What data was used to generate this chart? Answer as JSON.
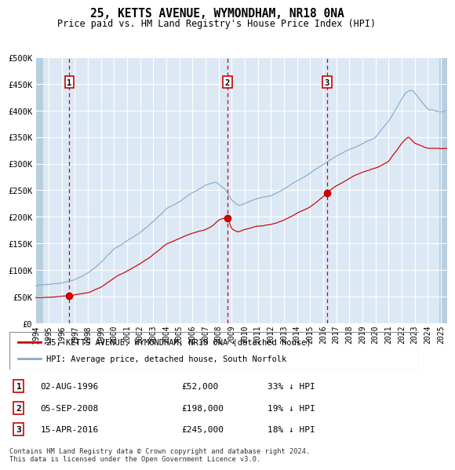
{
  "title": "25, KETTS AVENUE, WYMONDHAM, NR18 0NA",
  "subtitle": "Price paid vs. HM Land Registry's House Price Index (HPI)",
  "background_color": "#ffffff",
  "plot_bg_color": "#dce9f5",
  "hatch_color": "#b8cfe0",
  "grid_color": "#ffffff",
  "red_line_color": "#cc0000",
  "blue_line_color": "#88aacc",
  "sale_marker_color": "#cc0000",
  "vline_color": "#cc0000",
  "ylabel_values": [
    "£0",
    "£50K",
    "£100K",
    "£150K",
    "£200K",
    "£250K",
    "£300K",
    "£350K",
    "£400K",
    "£450K",
    "£500K"
  ],
  "ytick_values": [
    0,
    50000,
    100000,
    150000,
    200000,
    250000,
    300000,
    350000,
    400000,
    450000,
    500000
  ],
  "ylim": [
    0,
    500000
  ],
  "sale_points": [
    {
      "date_num": 1996.58,
      "price": 52000,
      "label": "1",
      "date_str": "02-AUG-1996",
      "price_str": "£52,000",
      "note": "33% ↓ HPI"
    },
    {
      "date_num": 2008.67,
      "price": 198000,
      "label": "2",
      "date_str": "05-SEP-2008",
      "price_str": "£198,000",
      "note": "19% ↓ HPI"
    },
    {
      "date_num": 2016.29,
      "price": 245000,
      "label": "3",
      "date_str": "15-APR-2016",
      "price_str": "£245,000",
      "note": "18% ↓ HPI"
    }
  ],
  "legend_entries": [
    {
      "label": "25, KETTS AVENUE, WYMONDHAM, NR18 0NA (detached house)",
      "color": "#cc0000"
    },
    {
      "label": "HPI: Average price, detached house, South Norfolk",
      "color": "#88aacc"
    }
  ],
  "footer": "Contains HM Land Registry data © Crown copyright and database right 2024.\nThis data is licensed under the Open Government Licence v3.0.",
  "xlim_start": 1994.0,
  "xlim_end": 2025.5,
  "xtick_years": [
    1994,
    1995,
    1996,
    1997,
    1998,
    1999,
    2000,
    2001,
    2002,
    2003,
    2004,
    2005,
    2006,
    2007,
    2008,
    2009,
    2010,
    2011,
    2012,
    2013,
    2014,
    2015,
    2016,
    2017,
    2018,
    2019,
    2020,
    2021,
    2022,
    2023,
    2024,
    2025
  ],
  "blue_waypoints_t": [
    1994,
    1995,
    1996,
    1997,
    1998,
    1999,
    2000,
    2001,
    2002,
    2003,
    2004,
    2005,
    2006,
    2007,
    2007.8,
    2008.5,
    2009.0,
    2009.5,
    2010,
    2011,
    2012,
    2013,
    2014,
    2015,
    2016,
    2017,
    2018,
    2019,
    2020,
    2021,
    2022.3,
    2022.8,
    2023.5,
    2024,
    2025,
    2025.5
  ],
  "blue_waypoints_v": [
    70000,
    73000,
    76000,
    82000,
    93000,
    112000,
    138000,
    152000,
    168000,
    188000,
    212000,
    228000,
    242000,
    256000,
    262000,
    248000,
    228000,
    218000,
    222000,
    232000,
    237000,
    250000,
    267000,
    282000,
    297000,
    312000,
    326000,
    337000,
    347000,
    378000,
    432000,
    438000,
    415000,
    400000,
    395000,
    398000
  ],
  "red_waypoints_t": [
    1994,
    1995,
    1996.0,
    1996.58,
    1997,
    1998,
    1999,
    2000,
    2001,
    2002,
    2003,
    2004,
    2005,
    2006,
    2007,
    2007.5,
    2008.0,
    2008.67,
    2009.0,
    2009.5,
    2010,
    2011,
    2012,
    2013,
    2014,
    2015,
    2016.0,
    2016.29,
    2017,
    2018,
    2019,
    2020,
    2021,
    2022,
    2022.5,
    2023,
    2024,
    2025,
    2025.5
  ],
  "red_waypoints_v": [
    48000,
    50000,
    51000,
    52000,
    54000,
    58000,
    68000,
    85000,
    98000,
    112000,
    128000,
    148000,
    158000,
    168000,
    175000,
    182000,
    192000,
    198000,
    175000,
    170000,
    176000,
    182000,
    186000,
    195000,
    208000,
    220000,
    238000,
    245000,
    258000,
    272000,
    284000,
    292000,
    305000,
    340000,
    352000,
    340000,
    330000,
    330000,
    330000
  ]
}
